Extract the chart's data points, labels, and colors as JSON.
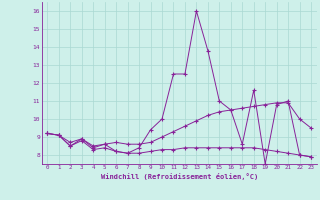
{
  "xlabel": "Windchill (Refroidissement éolien,°C)",
  "background_color": "#cef0ea",
  "grid_color": "#aad8d2",
  "line_color": "#882299",
  "x_values": [
    0,
    1,
    2,
    3,
    4,
    5,
    6,
    7,
    8,
    9,
    10,
    11,
    12,
    13,
    14,
    15,
    16,
    17,
    18,
    19,
    20,
    21,
    22,
    23
  ],
  "series_spike": [
    9.2,
    9.1,
    8.5,
    8.9,
    8.4,
    8.6,
    8.2,
    8.1,
    8.4,
    9.4,
    10.0,
    12.5,
    12.5,
    16.0,
    13.8,
    11.0,
    10.5,
    8.6,
    11.6,
    7.5,
    10.8,
    11.0,
    8.0,
    7.9
  ],
  "series_mid": [
    9.2,
    9.1,
    8.7,
    8.9,
    8.5,
    8.6,
    8.7,
    8.6,
    8.6,
    8.7,
    9.0,
    9.3,
    9.6,
    9.9,
    10.2,
    10.4,
    10.5,
    10.6,
    10.7,
    10.8,
    10.9,
    10.9,
    10.0,
    9.5
  ],
  "series_flat": [
    9.2,
    9.1,
    8.5,
    8.8,
    8.3,
    8.4,
    8.2,
    8.1,
    8.1,
    8.2,
    8.3,
    8.3,
    8.4,
    8.4,
    8.4,
    8.4,
    8.4,
    8.4,
    8.4,
    8.3,
    8.2,
    8.1,
    8.0,
    7.9
  ],
  "ylim": [
    7.5,
    16.5
  ],
  "yticks": [
    8,
    9,
    10,
    11,
    12,
    13,
    14,
    15,
    16
  ],
  "xlim": [
    -0.5,
    23.5
  ]
}
